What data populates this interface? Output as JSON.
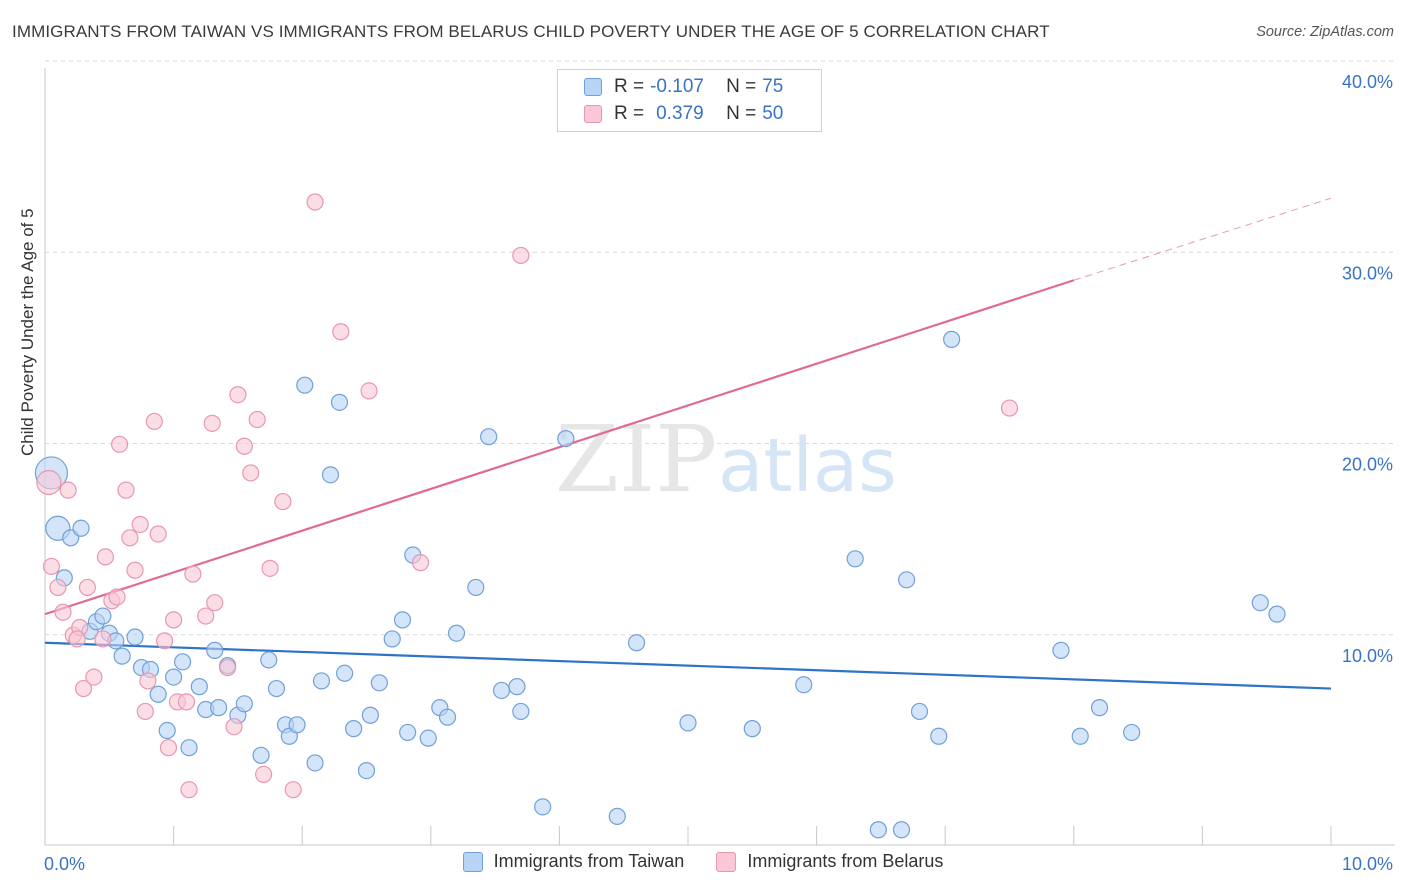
{
  "title": "IMMIGRANTS FROM TAIWAN VS IMMIGRANTS FROM BELARUS CHILD POVERTY UNDER THE AGE OF 5 CORRELATION CHART",
  "source": "Source: ZipAtlas.com",
  "watermark": {
    "zip": "ZIP",
    "atlas": "atlas"
  },
  "legend": {
    "taiwan": {
      "r_label": "R = ",
      "r_value": "-0.107",
      "n_label": "N = ",
      "n_value": "75"
    },
    "belarus": {
      "r_label": "R = ",
      "r_value": "0.379",
      "n_label": "N = ",
      "n_value": "50"
    }
  },
  "colors": {
    "taiwan_fill": "#b8d4f5",
    "taiwan_stroke": "#6fa0d8",
    "taiwan_line": "#2f72c6",
    "belarus_fill": "#f9c7d6",
    "belarus_stroke": "#e996b0",
    "belarus_line": "#e06a92",
    "axis_text": "#3a73c4",
    "grid": "#d9d9d9"
  },
  "chart_data": {
    "type": "scatter",
    "title": "IMMIGRANTS FROM TAIWAN VS IMMIGRANTS FROM BELARUS CHILD POVERTY UNDER THE AGE OF 5 CORRELATION CHART",
    "xlabel": "",
    "ylabel": "Child Poverty Under the Age of 5",
    "xlim": [
      0,
      10
    ],
    "ylim": [
      0,
      40
    ],
    "x_tick_labels": [
      {
        "value": 0,
        "label": "0.0%"
      },
      {
        "value": 10,
        "label": "10.0%"
      }
    ],
    "y_tick_labels": [
      {
        "value": 10,
        "label": "10.0%"
      },
      {
        "value": 20,
        "label": "20.0%"
      },
      {
        "value": 30,
        "label": "30.0%"
      },
      {
        "value": 40,
        "label": "40.0%"
      }
    ],
    "x_minor_ticks": [
      1,
      2,
      3,
      4,
      5,
      6,
      7,
      8,
      9,
      10
    ],
    "grid": true,
    "series": [
      {
        "name": "Immigrants from Taiwan",
        "r": -0.107,
        "n": 75,
        "trend": {
          "x": [
            0.0,
            10.0
          ],
          "y": [
            10.6,
            8.2
          ],
          "style": "solid"
        },
        "points": [
          {
            "x": 0.05,
            "y": 19.5,
            "s": "xl"
          },
          {
            "x": 0.1,
            "y": 16.6,
            "s": "l"
          },
          {
            "x": 0.15,
            "y": 14.0,
            "s": "m"
          },
          {
            "x": 0.2,
            "y": 16.1,
            "s": "m"
          },
          {
            "x": 0.28,
            "y": 16.6,
            "s": "m"
          },
          {
            "x": 0.35,
            "y": 11.2,
            "s": "m"
          },
          {
            "x": 0.4,
            "y": 11.7,
            "s": "m"
          },
          {
            "x": 0.45,
            "y": 12.0,
            "s": "m"
          },
          {
            "x": 0.5,
            "y": 11.1,
            "s": "m"
          },
          {
            "x": 0.55,
            "y": 10.7,
            "s": "m"
          },
          {
            "x": 0.6,
            "y": 9.9,
            "s": "m"
          },
          {
            "x": 0.7,
            "y": 10.9,
            "s": "m"
          },
          {
            "x": 0.75,
            "y": 9.3,
            "s": "m"
          },
          {
            "x": 0.82,
            "y": 9.2,
            "s": "m"
          },
          {
            "x": 0.88,
            "y": 7.9,
            "s": "m"
          },
          {
            "x": 0.95,
            "y": 6.0,
            "s": "m"
          },
          {
            "x": 1.0,
            "y": 8.8,
            "s": "m"
          },
          {
            "x": 1.07,
            "y": 9.6,
            "s": "m"
          },
          {
            "x": 1.12,
            "y": 5.1,
            "s": "m"
          },
          {
            "x": 1.2,
            "y": 8.3,
            "s": "m"
          },
          {
            "x": 1.25,
            "y": 7.1,
            "s": "m"
          },
          {
            "x": 1.32,
            "y": 10.2,
            "s": "m"
          },
          {
            "x": 1.35,
            "y": 7.2,
            "s": "m"
          },
          {
            "x": 1.42,
            "y": 9.4,
            "s": "m"
          },
          {
            "x": 1.5,
            "y": 6.8,
            "s": "m"
          },
          {
            "x": 1.55,
            "y": 7.4,
            "s": "m"
          },
          {
            "x": 1.68,
            "y": 4.7,
            "s": "m"
          },
          {
            "x": 1.74,
            "y": 9.7,
            "s": "m"
          },
          {
            "x": 1.8,
            "y": 8.2,
            "s": "m"
          },
          {
            "x": 1.87,
            "y": 6.3,
            "s": "m"
          },
          {
            "x": 1.9,
            "y": 5.7,
            "s": "m"
          },
          {
            "x": 1.96,
            "y": 6.3,
            "s": "m"
          },
          {
            "x": 2.02,
            "y": 24.1,
            "s": "m"
          },
          {
            "x": 2.1,
            "y": 4.3,
            "s": "m"
          },
          {
            "x": 2.15,
            "y": 8.6,
            "s": "m"
          },
          {
            "x": 2.22,
            "y": 19.4,
            "s": "m"
          },
          {
            "x": 2.29,
            "y": 23.2,
            "s": "m"
          },
          {
            "x": 2.33,
            "y": 9.0,
            "s": "m"
          },
          {
            "x": 2.4,
            "y": 6.1,
            "s": "m"
          },
          {
            "x": 2.5,
            "y": 3.9,
            "s": "m"
          },
          {
            "x": 2.53,
            "y": 6.8,
            "s": "m"
          },
          {
            "x": 2.6,
            "y": 8.5,
            "s": "m"
          },
          {
            "x": 2.7,
            "y": 10.8,
            "s": "m"
          },
          {
            "x": 2.78,
            "y": 11.8,
            "s": "m"
          },
          {
            "x": 2.82,
            "y": 5.9,
            "s": "m"
          },
          {
            "x": 2.86,
            "y": 15.2,
            "s": "m"
          },
          {
            "x": 2.98,
            "y": 5.6,
            "s": "m"
          },
          {
            "x": 3.07,
            "y": 7.2,
            "s": "m"
          },
          {
            "x": 3.13,
            "y": 6.7,
            "s": "m"
          },
          {
            "x": 3.2,
            "y": 11.1,
            "s": "m"
          },
          {
            "x": 3.35,
            "y": 13.5,
            "s": "m"
          },
          {
            "x": 3.45,
            "y": 21.4,
            "s": "m"
          },
          {
            "x": 3.55,
            "y": 8.1,
            "s": "m"
          },
          {
            "x": 3.67,
            "y": 8.3,
            "s": "m"
          },
          {
            "x": 3.7,
            "y": 7.0,
            "s": "m"
          },
          {
            "x": 3.87,
            "y": 2.0,
            "s": "m"
          },
          {
            "x": 4.05,
            "y": 21.3,
            "s": "m"
          },
          {
            "x": 4.45,
            "y": 1.5,
            "s": "m"
          },
          {
            "x": 4.6,
            "y": 10.6,
            "s": "m"
          },
          {
            "x": 5.0,
            "y": 6.4,
            "s": "m"
          },
          {
            "x": 5.5,
            "y": 6.1,
            "s": "m"
          },
          {
            "x": 5.9,
            "y": 8.4,
            "s": "m"
          },
          {
            "x": 6.3,
            "y": 15.0,
            "s": "m"
          },
          {
            "x": 6.48,
            "y": 0.8,
            "s": "m"
          },
          {
            "x": 6.66,
            "y": 0.8,
            "s": "m"
          },
          {
            "x": 6.7,
            "y": 13.9,
            "s": "m"
          },
          {
            "x": 6.8,
            "y": 7.0,
            "s": "m"
          },
          {
            "x": 6.95,
            "y": 5.7,
            "s": "m"
          },
          {
            "x": 7.05,
            "y": 26.5,
            "s": "m"
          },
          {
            "x": 7.9,
            "y": 10.2,
            "s": "m"
          },
          {
            "x": 8.05,
            "y": 5.7,
            "s": "m"
          },
          {
            "x": 8.2,
            "y": 7.2,
            "s": "m"
          },
          {
            "x": 8.45,
            "y": 5.9,
            "s": "m"
          },
          {
            "x": 9.45,
            "y": 12.7,
            "s": "m"
          },
          {
            "x": 9.58,
            "y": 12.1,
            "s": "m"
          }
        ]
      },
      {
        "name": "Immigrants from Belarus",
        "r": 0.379,
        "n": 50,
        "trend": {
          "x": [
            0.0,
            8.0
          ],
          "y": [
            12.1,
            29.6
          ],
          "style": "solid",
          "extension": {
            "x": [
              8.0,
              10.0
            ],
            "y": [
              29.6,
              33.9
            ],
            "style": "dashed"
          }
        },
        "points": [
          {
            "x": 0.03,
            "y": 19.0,
            "s": "l"
          },
          {
            "x": 0.05,
            "y": 14.6,
            "s": "m"
          },
          {
            "x": 0.1,
            "y": 13.5,
            "s": "m"
          },
          {
            "x": 0.14,
            "y": 12.2,
            "s": "m"
          },
          {
            "x": 0.18,
            "y": 18.6,
            "s": "m"
          },
          {
            "x": 0.22,
            "y": 11.0,
            "s": "m"
          },
          {
            "x": 0.27,
            "y": 11.4,
            "s": "m"
          },
          {
            "x": 0.3,
            "y": 8.2,
            "s": "m"
          },
          {
            "x": 0.33,
            "y": 13.5,
            "s": "m"
          },
          {
            "x": 0.38,
            "y": 8.8,
            "s": "m"
          },
          {
            "x": 0.45,
            "y": 10.8,
            "s": "m"
          },
          {
            "x": 0.47,
            "y": 15.1,
            "s": "m"
          },
          {
            "x": 0.52,
            "y": 12.8,
            "s": "m"
          },
          {
            "x": 0.56,
            "y": 13.0,
            "s": "m"
          },
          {
            "x": 0.58,
            "y": 21.0,
            "s": "m"
          },
          {
            "x": 0.63,
            "y": 18.6,
            "s": "m"
          },
          {
            "x": 0.66,
            "y": 16.1,
            "s": "m"
          },
          {
            "x": 0.7,
            "y": 14.4,
            "s": "m"
          },
          {
            "x": 0.74,
            "y": 16.8,
            "s": "m"
          },
          {
            "x": 0.78,
            "y": 7.0,
            "s": "m"
          },
          {
            "x": 0.8,
            "y": 8.6,
            "s": "m"
          },
          {
            "x": 0.85,
            "y": 22.2,
            "s": "m"
          },
          {
            "x": 0.88,
            "y": 16.3,
            "s": "m"
          },
          {
            "x": 0.93,
            "y": 10.7,
            "s": "m"
          },
          {
            "x": 0.96,
            "y": 5.1,
            "s": "m"
          },
          {
            "x": 1.0,
            "y": 11.8,
            "s": "m"
          },
          {
            "x": 1.03,
            "y": 7.5,
            "s": "m"
          },
          {
            "x": 1.1,
            "y": 7.5,
            "s": "m"
          },
          {
            "x": 1.12,
            "y": 2.9,
            "s": "m"
          },
          {
            "x": 1.15,
            "y": 14.2,
            "s": "m"
          },
          {
            "x": 1.25,
            "y": 12.0,
            "s": "m"
          },
          {
            "x": 1.3,
            "y": 22.1,
            "s": "m"
          },
          {
            "x": 1.32,
            "y": 12.7,
            "s": "m"
          },
          {
            "x": 1.42,
            "y": 9.3,
            "s": "m"
          },
          {
            "x": 1.47,
            "y": 6.2,
            "s": "m"
          },
          {
            "x": 1.5,
            "y": 23.6,
            "s": "m"
          },
          {
            "x": 1.55,
            "y": 20.9,
            "s": "m"
          },
          {
            "x": 1.6,
            "y": 19.5,
            "s": "m"
          },
          {
            "x": 1.65,
            "y": 22.3,
            "s": "m"
          },
          {
            "x": 1.7,
            "y": 3.7,
            "s": "m"
          },
          {
            "x": 1.75,
            "y": 14.5,
            "s": "m"
          },
          {
            "x": 1.85,
            "y": 18.0,
            "s": "m"
          },
          {
            "x": 1.93,
            "y": 2.9,
            "s": "m"
          },
          {
            "x": 2.1,
            "y": 33.7,
            "s": "m"
          },
          {
            "x": 2.3,
            "y": 26.9,
            "s": "m"
          },
          {
            "x": 2.52,
            "y": 23.8,
            "s": "m"
          },
          {
            "x": 2.92,
            "y": 14.8,
            "s": "m"
          },
          {
            "x": 3.7,
            "y": 30.9,
            "s": "m"
          },
          {
            "x": 7.5,
            "y": 22.9,
            "s": "m"
          },
          {
            "x": 0.25,
            "y": 10.8,
            "s": "m"
          }
        ]
      }
    ]
  },
  "bottom_legend": {
    "taiwan": "Immigrants from Taiwan",
    "belarus": "Immigrants from Belarus"
  }
}
